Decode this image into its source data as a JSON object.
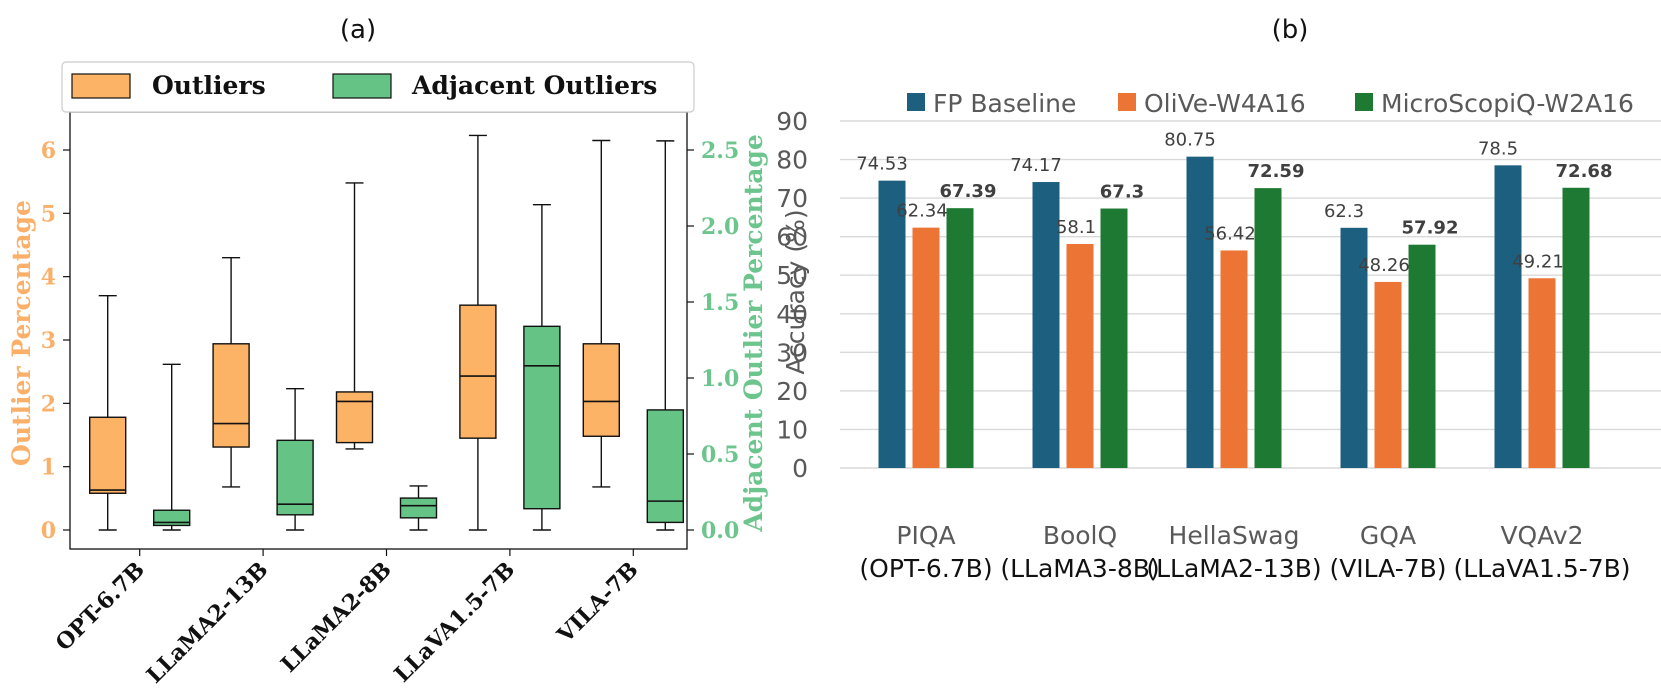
{
  "colors": {
    "outliers": "#fdb366",
    "adjacent": "#66c386",
    "outliers_axis": "#fbb06a",
    "adjacent_axis": "#6cc58c",
    "fp_baseline": "#1c5f7f",
    "olive": "#ec7434",
    "microscopiq": "#1e7a33",
    "grid": "#d9d9d9"
  },
  "chart_data": [
    {
      "type": "box",
      "panel_label": "(a)",
      "legend": [
        "Outliers",
        "Adjacent Outliers"
      ],
      "ylabel_left": "Outlier Percentage",
      "ylabel_right": "Adjacent Outlier Percentage",
      "ylim_left": [
        -0.3,
        6.6
      ],
      "ylim_right": [
        -0.125,
        2.75
      ],
      "yticks_left": [
        "0",
        "1",
        "2",
        "3",
        "4",
        "5",
        "6"
      ],
      "yticks_right": [
        "0.0",
        "0.5",
        "1.0",
        "1.5",
        "2.0",
        "2.5"
      ],
      "categories": [
        "OPT-6.7B",
        "LLaMA2-13B",
        "LLaMA2-8B",
        "LLaVA1.5-7B",
        "VILA-7B"
      ],
      "outliers": [
        {
          "min": 0.0,
          "q1": 0.58,
          "median": 0.63,
          "q3": 1.78,
          "max": 3.7
        },
        {
          "min": 0.68,
          "q1": 1.31,
          "median": 1.68,
          "q3": 2.94,
          "max": 4.3
        },
        {
          "min": 1.28,
          "q1": 1.38,
          "median": 2.03,
          "q3": 2.18,
          "max": 5.48
        },
        {
          "min": 0.0,
          "q1": 1.45,
          "median": 2.43,
          "q3": 3.55,
          "max": 6.23
        },
        {
          "min": 0.68,
          "q1": 1.48,
          "median": 2.03,
          "q3": 2.94,
          "max": 6.15
        }
      ],
      "adjacent_outliers": [
        {
          "min": 0.0,
          "q1": 0.03,
          "median": 0.05,
          "q3": 0.13,
          "max": 1.09
        },
        {
          "min": 0.0,
          "q1": 0.1,
          "median": 0.17,
          "q3": 0.59,
          "max": 0.93
        },
        {
          "min": 0.0,
          "q1": 0.08,
          "median": 0.16,
          "q3": 0.21,
          "max": 0.29
        },
        {
          "min": 0.0,
          "q1": 0.14,
          "median": 1.08,
          "q3": 1.34,
          "max": 2.14
        },
        {
          "min": 0.0,
          "q1": 0.05,
          "median": 0.19,
          "q3": 0.79,
          "max": 2.56
        }
      ]
    },
    {
      "type": "bar",
      "panel_label": "(b)",
      "ylabel": "Accuracy (%)",
      "ylim": [
        0,
        90
      ],
      "yticks": [
        "0",
        "10",
        "20",
        "30",
        "40",
        "50",
        "60",
        "70",
        "80",
        "90"
      ],
      "categories": [
        [
          "PIQA",
          "(OPT-6.7B)"
        ],
        [
          "BoolQ",
          "(LLaMA3-8B)"
        ],
        [
          "HellaSwag",
          "(LLaMA2-13B)"
        ],
        [
          "GQA",
          "(VILA-7B)"
        ],
        [
          "VQAv2",
          "(LLaVA1.5-7B)"
        ]
      ],
      "series": [
        {
          "name": "FP Baseline",
          "values": [
            74.53,
            74.17,
            80.75,
            62.3,
            78.5
          ],
          "labels": [
            "74.53",
            "74.17",
            "80.75",
            "62.3",
            "78.5"
          ],
          "bold": false
        },
        {
          "name": "OliVe-W4A16",
          "values": [
            62.34,
            58.1,
            56.42,
            48.26,
            49.21
          ],
          "labels": [
            "62.34",
            "58.1",
            "56.42",
            "48.26",
            "49.21"
          ],
          "bold": false
        },
        {
          "name": "MicroScopiQ-W2A16",
          "values": [
            67.39,
            67.3,
            72.59,
            57.92,
            72.68
          ],
          "labels": [
            "67.39",
            "67.3",
            "72.59",
            "57.92",
            "72.68"
          ],
          "bold": true
        }
      ]
    }
  ]
}
